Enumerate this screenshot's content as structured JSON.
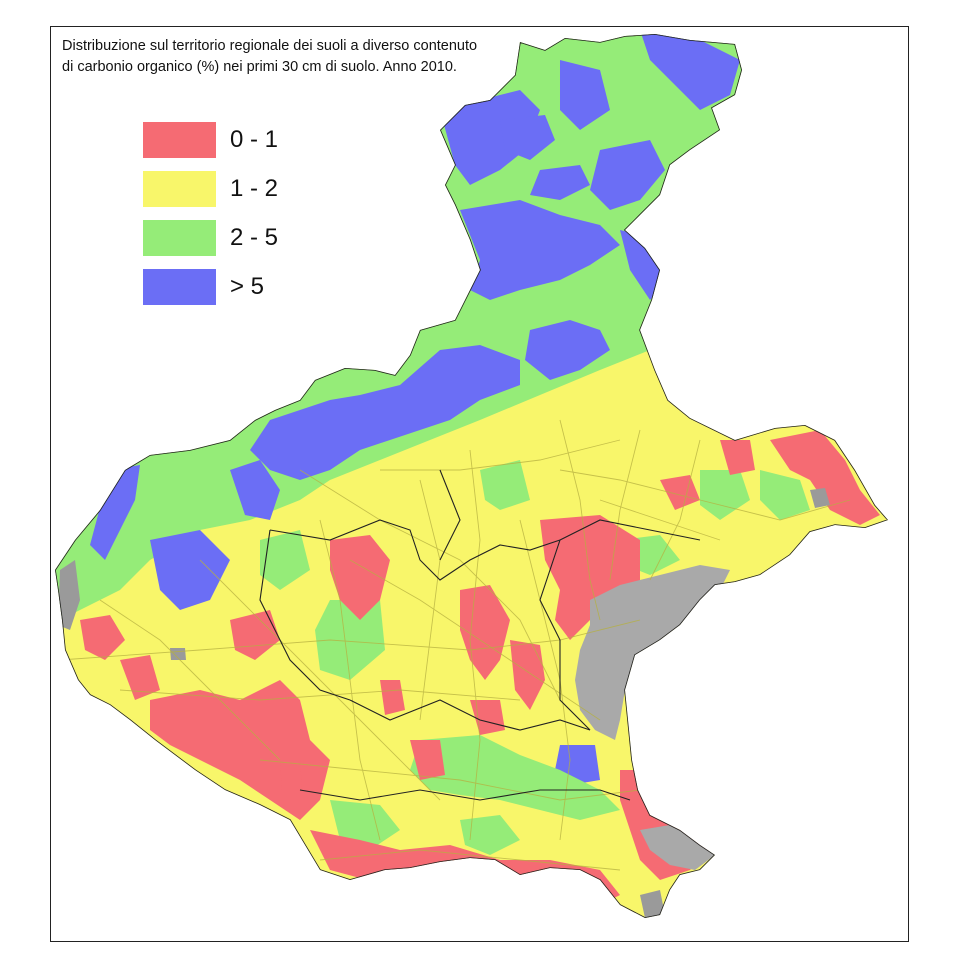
{
  "map": {
    "title": "Distribuzione sul territorio regionale dei suoli a diverso contenuto di carbonio organico (%) nei primi 30 cm di suolo. Anno 2010.",
    "legend": [
      {
        "label": "0 - 1",
        "color": "#f56b73"
      },
      {
        "label": "1 - 2",
        "color": "#f8f66a"
      },
      {
        "label": "2 - 5",
        "color": "#95ec78"
      },
      {
        "label": "> 5",
        "color": "#6b6ef5"
      }
    ],
    "colors": {
      "urban": "#9a9a9a",
      "lagoon": "#a9a9a9",
      "roads": "#b6b040",
      "border": "#222222"
    }
  }
}
